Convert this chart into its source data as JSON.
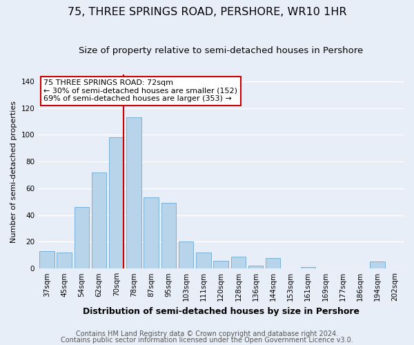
{
  "title": "75, THREE SPRINGS ROAD, PERSHORE, WR10 1HR",
  "subtitle": "Size of property relative to semi-detached houses in Pershore",
  "xlabel": "Distribution of semi-detached houses by size in Pershore",
  "ylabel": "Number of semi-detached properties",
  "categories": [
    "37sqm",
    "45sqm",
    "54sqm",
    "62sqm",
    "70sqm",
    "78sqm",
    "87sqm",
    "95sqm",
    "103sqm",
    "111sqm",
    "120sqm",
    "128sqm",
    "136sqm",
    "144sqm",
    "153sqm",
    "161sqm",
    "169sqm",
    "177sqm",
    "186sqm",
    "194sqm",
    "202sqm"
  ],
  "values": [
    13,
    12,
    46,
    72,
    98,
    113,
    53,
    49,
    20,
    12,
    6,
    9,
    2,
    8,
    0,
    1,
    0,
    0,
    0,
    5,
    0
  ],
  "bar_color": "#b8d4ea",
  "bar_edgecolor": "#7aafd4",
  "vline_color": "#cc0000",
  "annotation_title": "75 THREE SPRINGS ROAD: 72sqm",
  "annotation_line1": "← 30% of semi-detached houses are smaller (152)",
  "annotation_line2": "69% of semi-detached houses are larger (353) →",
  "annotation_box_facecolor": "#ffffff",
  "annotation_box_edgecolor": "#cc0000",
  "ylim": [
    0,
    145
  ],
  "yticks": [
    0,
    20,
    40,
    60,
    80,
    100,
    120,
    140
  ],
  "footer1": "Contains HM Land Registry data © Crown copyright and database right 2024.",
  "footer2": "Contains public sector information licensed under the Open Government Licence v3.0.",
  "background_color": "#e8eef8",
  "plot_background_color": "#e8eef8",
  "grid_color": "#ffffff",
  "title_fontsize": 11.5,
  "subtitle_fontsize": 9.5,
  "xlabel_fontsize": 9,
  "ylabel_fontsize": 8,
  "tick_fontsize": 7.5,
  "annotation_fontsize": 8,
  "footer_fontsize": 7
}
